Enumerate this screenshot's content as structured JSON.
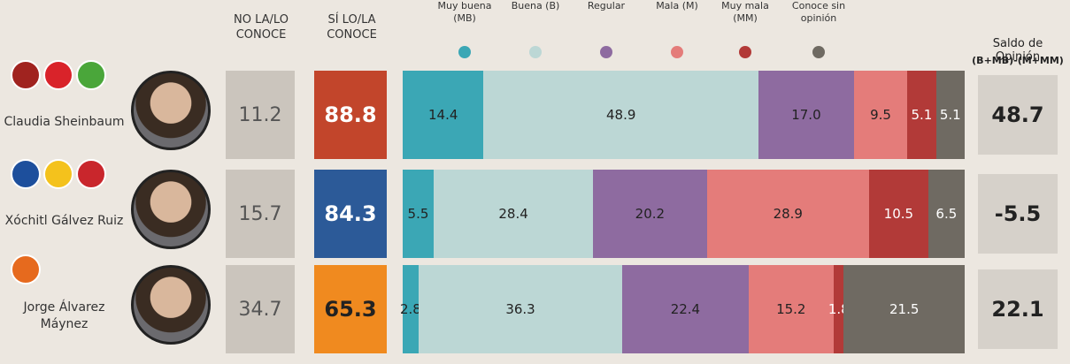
{
  "chart_data": {
    "type": "stacked_bar",
    "categories": [
      "Claudia Sheinbaum",
      "Xóchitl Gálvez Ruiz",
      "Jorge Álvarez Máynez"
    ],
    "unknown_header": "NO LA/LO CONOCE",
    "unknown_values": [
      11.2,
      15.7,
      34.7
    ],
    "known_header": "SÍ LO/LA CONOCE",
    "known_values": [
      88.8,
      84.3,
      65.3
    ],
    "known_colors": [
      "#c2452b",
      "#2c5a98",
      "#f08a1f"
    ],
    "series": [
      {
        "name": "Muy buena (MB)",
        "color": "#3ba7b5",
        "values": [
          14.4,
          5.5,
          2.8
        ]
      },
      {
        "name": "Buena (B)",
        "color": "#bcd7d5",
        "values": [
          48.9,
          28.4,
          36.3
        ]
      },
      {
        "name": "Regular",
        "color": "#8e6ba0",
        "values": [
          17.0,
          20.2,
          22.4
        ],
        "value_labels": [
          "17.0",
          "20.2",
          "22.4"
        ]
      },
      {
        "name": "Mala (M)",
        "color": "#e47c7a",
        "values": [
          9.5,
          28.9,
          15.2
        ]
      },
      {
        "name": "Muy mala (MM)",
        "color": "#b23a38",
        "values": [
          5.1,
          10.5,
          1.8
        ]
      },
      {
        "name": "Conoce sin opinión",
        "color": "#6f6a62",
        "values": [
          5.1,
          6.5,
          21.5
        ]
      }
    ],
    "balance_title": "Saldo de Opinión",
    "balance_formula": "(B+MB)-(M+MM)",
    "balance_values": [
      48.7,
      -5.5,
      22.1
    ]
  }
}
